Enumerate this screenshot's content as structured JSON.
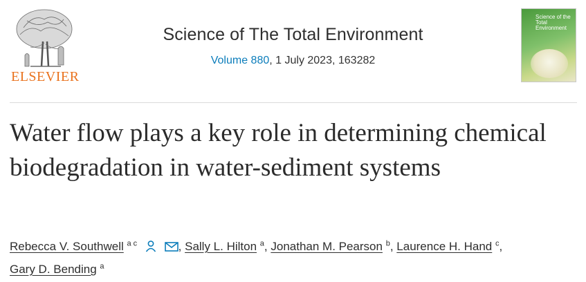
{
  "publisher": {
    "name": "ELSEVIER"
  },
  "journal": {
    "title": "Science of The Total Environment",
    "volume_link": "Volume 880",
    "volume_rest": ", 1 July 2023, 163282",
    "cover_title": "Science of the Total Environment"
  },
  "article": {
    "title": "Water flow plays a key role in determining chemical biodegradation in water-sediment systems"
  },
  "authors": [
    {
      "name": "Rebecca V. Southwell",
      "aff": "a c"
    },
    {
      "name": "Sally L. Hilton",
      "aff": "a"
    },
    {
      "name": "Jonathan M. Pearson",
      "aff": "b"
    },
    {
      "name": "Laurence H. Hand",
      "aff": "c"
    },
    {
      "name": "Gary D. Bending",
      "aff": "a"
    }
  ],
  "separators": {
    "comma": ", ",
    "comma_end": ","
  },
  "colors": {
    "accent": "#0c7dbb",
    "brand": "#e9711c"
  },
  "icons": [
    "person-icon",
    "envelope-icon"
  ]
}
